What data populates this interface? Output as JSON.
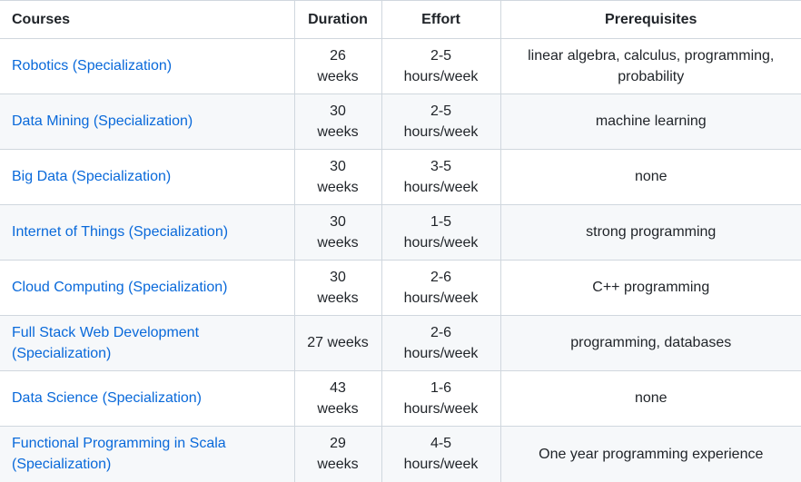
{
  "table": {
    "columns": [
      {
        "label": "Courses",
        "align": "left"
      },
      {
        "label": "Duration",
        "align": "center"
      },
      {
        "label": "Effort",
        "align": "center"
      },
      {
        "label": "Prerequisites",
        "align": "center"
      }
    ],
    "rows": [
      {
        "course": "Robotics (Specialization)",
        "duration": "26\nweeks",
        "effort": "2-5\nhours/week",
        "prerequisites": "linear algebra, calculus, programming,\nprobability"
      },
      {
        "course": "Data Mining (Specialization)",
        "duration": "30\nweeks",
        "effort": "2-5\nhours/week",
        "prerequisites": "machine learning"
      },
      {
        "course": "Big Data (Specialization)",
        "duration": "30\nweeks",
        "effort": "3-5\nhours/week",
        "prerequisites": "none"
      },
      {
        "course": "Internet of Things (Specialization)",
        "duration": "30\nweeks",
        "effort": "1-5\nhours/week",
        "prerequisites": "strong programming"
      },
      {
        "course": "Cloud Computing (Specialization)",
        "duration": "30\nweeks",
        "effort": "2-6\nhours/week",
        "prerequisites": "C++ programming"
      },
      {
        "course": "Full Stack Web Development\n(Specialization)",
        "duration": "27 weeks",
        "effort": "2-6\nhours/week",
        "prerequisites": "programming, databases"
      },
      {
        "course": "Data Science (Specialization)",
        "duration": "43\nweeks",
        "effort": "1-6\nhours/week",
        "prerequisites": "none"
      },
      {
        "course": "Functional Programming in Scala\n(Specialization)",
        "duration": "29\nweeks",
        "effort": "4-5\nhours/week",
        "prerequisites": "One year programming experience"
      }
    ]
  },
  "colors": {
    "link": "#0969da",
    "text": "#1f2328",
    "stripe": "#f6f8fa",
    "border": "#d0d7de"
  }
}
